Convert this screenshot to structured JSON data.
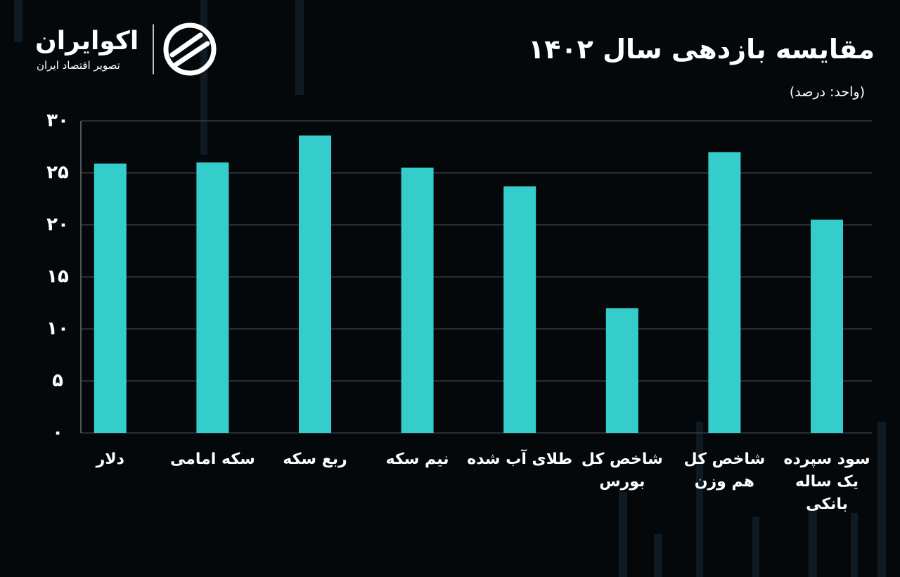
{
  "logo": {
    "name": "اکوایران",
    "tagline": "تصویر اقتصاد ایران"
  },
  "chart_data": {
    "type": "bar",
    "title": "مقایسه بازدهی سال ۱۴۰۲",
    "subtitle": "(واحد: درصد)",
    "categories": [
      "دلار",
      "سکه امامی",
      "ربع سکه",
      "نیم سکه",
      "طلای آب شده",
      "شاخص کل\nبورس",
      "شاخص کل\nهم وزن",
      "سود سپرده\nیک ساله\nبانکی"
    ],
    "values": [
      25.9,
      26.0,
      28.6,
      25.5,
      23.7,
      12.0,
      27.0,
      20.5
    ],
    "color": "#35cccc",
    "ylim": [
      0,
      30
    ],
    "yticks": [
      {
        "value": 0,
        "label": "۰"
      },
      {
        "value": 5,
        "label": "۵"
      },
      {
        "value": 10,
        "label": "۱۰"
      },
      {
        "value": 15,
        "label": "۱۵"
      },
      {
        "value": 20,
        "label": "۲۰"
      },
      {
        "value": 25,
        "label": "۲۵"
      },
      {
        "value": 30,
        "label": "۳۰"
      }
    ],
    "grid": true
  }
}
